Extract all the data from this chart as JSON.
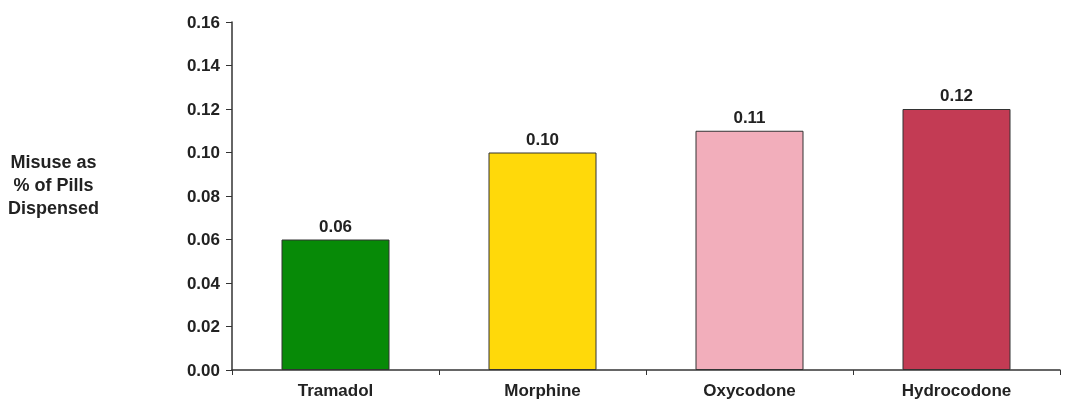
{
  "chart_data": {
    "type": "bar",
    "ylabel": "Misuse as\n% of Pills\nDispensed",
    "categories": [
      "Tramadol",
      "Morphine",
      "Oxycodone",
      "Hydrocodone"
    ],
    "values": [
      0.06,
      0.1,
      0.11,
      0.12
    ],
    "colors": [
      "#078a07",
      "#ffd90a",
      "#f2aebb",
      "#c33b54"
    ],
    "value_labels": [
      "0.06",
      "0.10",
      "0.11",
      "0.12"
    ],
    "ylim": [
      0,
      0.16
    ],
    "yticks": [
      {
        "value": 0,
        "label": "0.00"
      },
      {
        "value": 0.02,
        "label": "0.02"
      },
      {
        "value": 0.04,
        "label": "0.04"
      },
      {
        "value": 0.06,
        "label": "0.06"
      },
      {
        "value": 0.08,
        "label": "0.08"
      },
      {
        "value": 0.1,
        "label": "0.10"
      },
      {
        "value": 0.12,
        "label": "0.12"
      },
      {
        "value": 0.14,
        "label": "0.14"
      },
      {
        "value": 0.16,
        "label": "0.16"
      }
    ],
    "grid": false
  }
}
